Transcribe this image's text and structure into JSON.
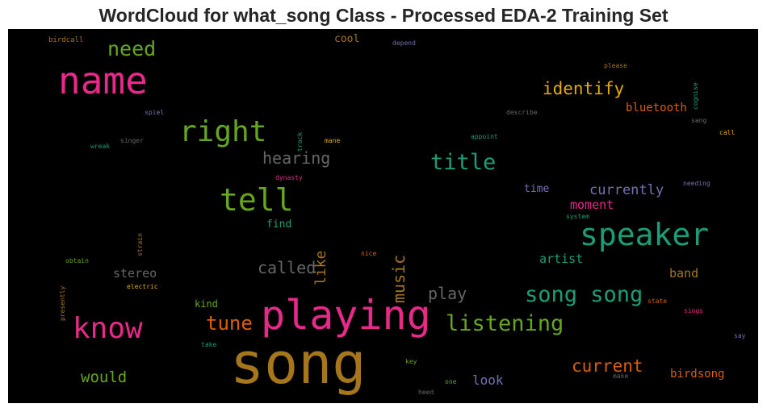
{
  "chart_data": {
    "type": "wordcloud",
    "title": "WordCloud for what_song Class - Processed EDA-2 Training Set",
    "background": "#000000",
    "colormap": "Dark2",
    "words": [
      {
        "text": "song",
        "color": "#a6761d"
      },
      {
        "text": "playing",
        "color": "#e7298a"
      },
      {
        "text": "name",
        "color": "#e7298a"
      },
      {
        "text": "speaker",
        "color": "#1b9e77"
      },
      {
        "text": "tell",
        "color": "#66a61e"
      },
      {
        "text": "know",
        "color": "#e7298a"
      },
      {
        "text": "right",
        "color": "#66a61e"
      },
      {
        "text": "song song",
        "color": "#1b9e77"
      },
      {
        "text": "listening",
        "color": "#66a61e"
      },
      {
        "text": "title",
        "color": "#1b9e77"
      },
      {
        "text": "need",
        "color": "#66a61e"
      },
      {
        "text": "identify",
        "color": "#e6ab02"
      },
      {
        "text": "music",
        "color": "#a6761d"
      },
      {
        "text": "tune",
        "color": "#d95f02"
      },
      {
        "text": "current",
        "color": "#d95f02"
      },
      {
        "text": "hearing",
        "color": "#666666"
      },
      {
        "text": "called",
        "color": "#666666"
      },
      {
        "text": "currently",
        "color": "#7570b3"
      },
      {
        "text": "like",
        "color": "#a6761d"
      },
      {
        "text": "play",
        "color": "#666666"
      },
      {
        "text": "would",
        "color": "#66a61e"
      },
      {
        "text": "stereo",
        "color": "#666666"
      },
      {
        "text": "look",
        "color": "#7570b3"
      },
      {
        "text": "moment",
        "color": "#e7298a"
      },
      {
        "text": "artist",
        "color": "#1b9e77"
      },
      {
        "text": "band",
        "color": "#a6761d"
      },
      {
        "text": "birdsong",
        "color": "#d95f02"
      },
      {
        "text": "bluetooth",
        "color": "#d95f02"
      },
      {
        "text": "time",
        "color": "#7570b3"
      },
      {
        "text": "cool",
        "color": "#a6761d"
      },
      {
        "text": "find",
        "color": "#1b9e77"
      },
      {
        "text": "kind",
        "color": "#66a61e"
      },
      {
        "text": "birdcall",
        "color": "#a6761d"
      },
      {
        "text": "depend",
        "color": "#7570b3"
      },
      {
        "text": "please",
        "color": "#a6761d"
      },
      {
        "text": "cognise",
        "color": "#1b9e77"
      },
      {
        "text": "describe",
        "color": "#666666"
      },
      {
        "text": "spiel",
        "color": "#7570b3"
      },
      {
        "text": "sang",
        "color": "#666666"
      },
      {
        "text": "call",
        "color": "#e6ab02"
      },
      {
        "text": "appoint",
        "color": "#1b9e77"
      },
      {
        "text": "track",
        "color": "#1b9e77"
      },
      {
        "text": "mane",
        "color": "#e6ab02"
      },
      {
        "text": "singer",
        "color": "#666666"
      },
      {
        "text": "wreak",
        "color": "#1b9e77"
      },
      {
        "text": "dynasty",
        "color": "#e7298a"
      },
      {
        "text": "needing",
        "color": "#7570b3"
      },
      {
        "text": "system",
        "color": "#1b9e77"
      },
      {
        "text": "strain",
        "color": "#a6761d"
      },
      {
        "text": "obtain",
        "color": "#66a61e"
      },
      {
        "text": "nice",
        "color": "#d95f02"
      },
      {
        "text": "electric",
        "color": "#e6ab02"
      },
      {
        "text": "presently",
        "color": "#a6761d"
      },
      {
        "text": "state",
        "color": "#d95f02"
      },
      {
        "text": "sings",
        "color": "#e7298a"
      },
      {
        "text": "say",
        "color": "#7570b3"
      },
      {
        "text": "take",
        "color": "#1b9e77"
      },
      {
        "text": "key",
        "color": "#66a61e"
      },
      {
        "text": "make",
        "color": "#666666"
      },
      {
        "text": "one",
        "color": "#66a61e"
      },
      {
        "text": "heed",
        "color": "#666666"
      }
    ]
  }
}
